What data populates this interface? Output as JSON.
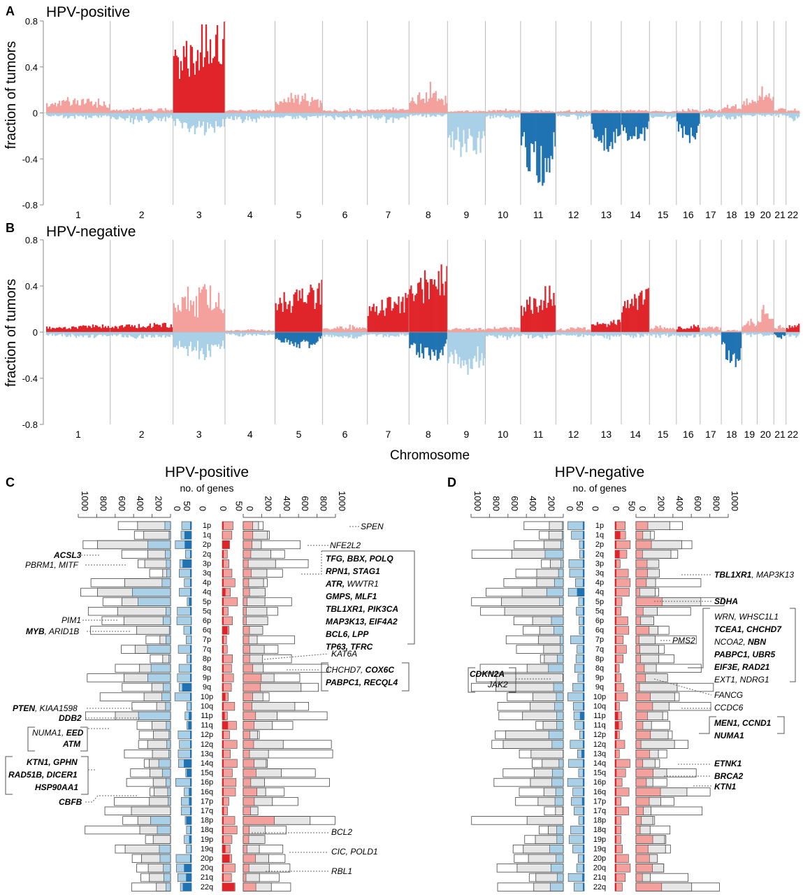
{
  "chart_data": [
    {
      "type": "area",
      "panel": "A",
      "title": "HPV-positive",
      "ylabel": "fraction of tumors",
      "xlabel": "",
      "ylim": [
        -0.8,
        0.8
      ],
      "yticks": [
        "0.8",
        "0.4",
        "0",
        "-0.4",
        "-0.8"
      ],
      "categories": [
        "1",
        "2",
        "3",
        "4",
        "5",
        "6",
        "7",
        "8",
        "9",
        "10",
        "11",
        "12",
        "13",
        "14",
        "15",
        "16",
        "17",
        "18",
        "19",
        "20",
        "21",
        "22"
      ],
      "gain_series": {
        "name": "gain",
        "values": [
          0.12,
          0.04,
          0.62,
          0.03,
          0.14,
          0.03,
          0.04,
          0.2,
          0.02,
          0.03,
          0.02,
          0.02,
          0.03,
          0.03,
          0.02,
          0.03,
          0.03,
          0.06,
          0.12,
          0.22,
          0.05,
          0.03
        ]
      },
      "loss_series": {
        "name": "loss",
        "values": [
          -0.04,
          -0.07,
          -0.15,
          -0.07,
          -0.05,
          -0.05,
          -0.06,
          -0.03,
          -0.35,
          -0.05,
          -0.42,
          -0.04,
          -0.22,
          -0.2,
          -0.05,
          -0.18,
          -0.04,
          -0.05,
          -0.03,
          -0.03,
          -0.03,
          -0.05
        ]
      },
      "significant_gain": [
        "3"
      ],
      "significant_loss": [
        "11",
        "13",
        "14",
        "16"
      ]
    },
    {
      "type": "area",
      "panel": "B",
      "title": "HPV-negative",
      "ylabel": "fraction of tumors",
      "xlabel": "Chromosome",
      "ylim": [
        -0.8,
        0.8
      ],
      "yticks": [
        "0.8",
        "0.4",
        "0",
        "-0.4",
        "-0.8"
      ],
      "categories": [
        "1",
        "2",
        "3",
        "4",
        "5",
        "6",
        "7",
        "8",
        "9",
        "10",
        "11",
        "12",
        "13",
        "14",
        "15",
        "16",
        "17",
        "18",
        "19",
        "20",
        "21",
        "22"
      ],
      "gain_series": {
        "name": "gain",
        "values": [
          0.05,
          0.06,
          0.35,
          0.02,
          0.32,
          0.05,
          0.25,
          0.45,
          0.04,
          0.05,
          0.3,
          0.04,
          0.08,
          0.28,
          0.05,
          0.05,
          0.05,
          0.02,
          0.1,
          0.2,
          0.05,
          0.06
        ]
      },
      "loss_series": {
        "name": "loss",
        "values": [
          -0.04,
          -0.05,
          -0.2,
          -0.03,
          -0.1,
          -0.05,
          -0.04,
          -0.18,
          -0.35,
          -0.05,
          -0.05,
          -0.04,
          -0.05,
          -0.04,
          -0.04,
          -0.05,
          -0.04,
          -0.22,
          -0.03,
          -0.03,
          -0.04,
          -0.04
        ]
      },
      "significant_gain": [
        "1",
        "2",
        "5",
        "7",
        "8",
        "11",
        "13",
        "14",
        "16",
        "22"
      ],
      "significant_loss": [
        "5",
        "8",
        "18",
        "21"
      ]
    },
    {
      "type": "bar",
      "panel": "C",
      "title": "HPV-positive",
      "xlabel": "no. of genes",
      "arms": [
        "1p",
        "1q",
        "2p",
        "2q",
        "3p",
        "3q",
        "4p",
        "4q",
        "5p",
        "5q",
        "6p",
        "6q",
        "7p",
        "7q",
        "8p",
        "8q",
        "9p",
        "9q",
        "10p",
        "10q",
        "11p",
        "11q",
        "12p",
        "12q",
        "13q",
        "14q",
        "15q",
        "16p",
        "16q",
        "17p",
        "17q",
        "18p",
        "18q",
        "19p",
        "19q",
        "20p",
        "20q",
        "21q",
        "22q"
      ]
    },
    {
      "type": "bar",
      "panel": "D",
      "title": "HPV-negative",
      "xlabel": "no. of genes",
      "arms": [
        "1p",
        "1q",
        "2p",
        "2q",
        "3p",
        "3q",
        "4p",
        "4q",
        "5p",
        "5q",
        "6p",
        "6q",
        "7p",
        "7q",
        "8p",
        "8q",
        "9p",
        "9q",
        "10p",
        "10q",
        "11p",
        "11q",
        "12p",
        "12q",
        "13q",
        "14q",
        "15q",
        "16p",
        "16q",
        "17p",
        "17q",
        "18p",
        "18q",
        "19p",
        "19q",
        "20p",
        "20q",
        "21q",
        "22q"
      ]
    }
  ],
  "labels": {
    "panelA": "A",
    "panelB": "B",
    "panelC": "C",
    "panelD": "D",
    "chromosome": "Chromosome",
    "ticks_outer": [
      "1000",
      "800",
      "600",
      "400",
      "200",
      "0"
    ],
    "ticks_inner": [
      "50",
      "0"
    ]
  },
  "colors": {
    "gain": "#f4a09c",
    "gain_sig": "#e0252a",
    "loss": "#a9d0e7",
    "loss_sig": "#1f73b2",
    "grey": "#e6e6e6"
  }
}
